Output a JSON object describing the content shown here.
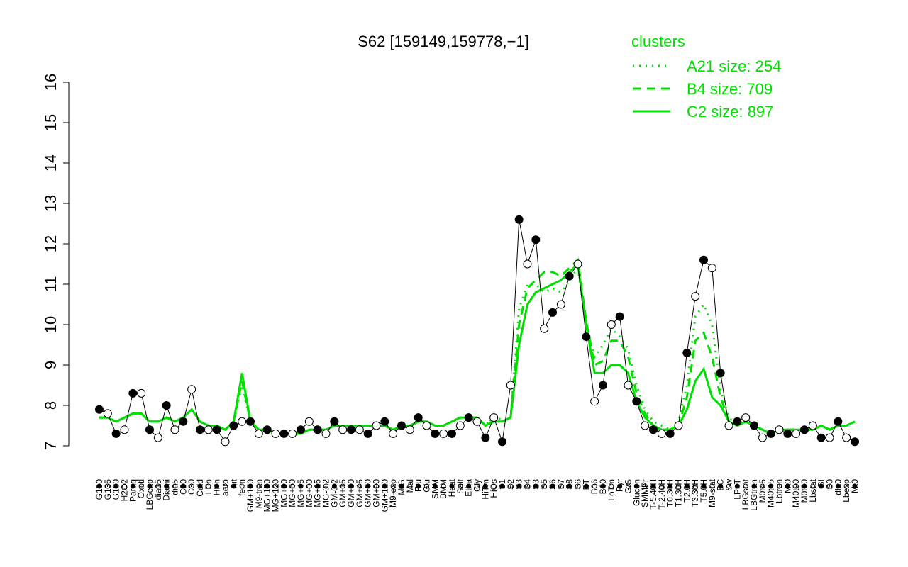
{
  "chart_data": {
    "type": "line",
    "title": "S62 [159149,159778,−1]",
    "legend_title": "clusters",
    "legend_position": "top-right",
    "ylim": [
      7,
      16
    ],
    "yticks": [
      7,
      8,
      9,
      10,
      11,
      12,
      13,
      14,
      15,
      16
    ],
    "categories": [
      "G150",
      "G135",
      "G180",
      "H2O2",
      "Paraq",
      "Oxctl",
      "LBGexp",
      "dia15",
      "Diami",
      "dia5",
      "C90",
      "C30",
      "Cold",
      "LPh",
      "HPh",
      "aero",
      "nit",
      "ferm",
      "GM+150",
      "M9-tran",
      "MG+150",
      "MG+120",
      "MG+90",
      "MG+60",
      "MG+45",
      "MG+30",
      "MG+15",
      "MG-0.2",
      "GM-0.2",
      "GM+15",
      "GM+30",
      "GM+45",
      "GM+60",
      "GM+90",
      "GM+120",
      "M9-exp",
      "M/G",
      "Mal",
      "Fru",
      "Glu",
      "SMM",
      "BMM",
      "Heat",
      "Salt",
      "Etha",
      "Gly",
      "HiTm",
      "HiOs",
      "S1",
      "S2",
      "S3",
      "S4",
      "S3",
      "S5",
      "S6",
      "S7",
      "S8",
      "S6",
      "BT",
      "B36",
      "B60",
      "LoTm",
      "Pyr",
      "G/S",
      "Glucon",
      "SMMPr",
      "T-5.40H",
      "T-2.40H",
      "T0.30H",
      "T1.30H",
      "T2.0H",
      "T3.30H",
      "T5.0H",
      "M9-stat",
      "BC",
      "Sw",
      "LPhT",
      "LBGstat",
      "LBGtran",
      "M0t45",
      "M40t45",
      "Lbtran",
      "Mt0",
      "M40t90",
      "M0t90",
      "Lbstat",
      "BI",
      "S0",
      "dia0",
      "Lbexp",
      "Mt0"
    ],
    "values": [
      7.9,
      7.8,
      7.3,
      7.4,
      8.3,
      8.3,
      7.4,
      7.2,
      8.0,
      7.4,
      7.6,
      8.4,
      7.4,
      7.4,
      7.4,
      7.1,
      7.5,
      7.6,
      7.6,
      7.3,
      7.4,
      7.3,
      7.3,
      7.3,
      7.4,
      7.6,
      7.4,
      7.3,
      7.6,
      7.4,
      7.4,
      7.4,
      7.3,
      7.5,
      7.6,
      7.3,
      7.5,
      7.4,
      7.7,
      7.5,
      7.3,
      7.3,
      7.3,
      7.5,
      7.7,
      7.6,
      7.2,
      7.7,
      7.1,
      8.5,
      12.6,
      11.5,
      12.1,
      9.9,
      10.3,
      10.5,
      11.2,
      11.5,
      9.7,
      8.1,
      8.5,
      10.0,
      10.2,
      8.5,
      8.1,
      7.5,
      7.4,
      7.3,
      7.3,
      7.5,
      9.3,
      10.7,
      11.6,
      11.4,
      8.8,
      7.5,
      7.6,
      7.7,
      7.5,
      7.2,
      7.3,
      7.4,
      7.3,
      7.3,
      7.4,
      7.5,
      7.2,
      7.2,
      7.6,
      7.2,
      7.1
    ],
    "color": "#000000",
    "series": [
      {
        "name": "A21 size: 254",
        "color": "#00e000",
        "dash": "dotted",
        "values": [
          7.7,
          7.7,
          7.6,
          7.7,
          7.8,
          7.8,
          7.6,
          7.6,
          7.7,
          7.6,
          7.7,
          7.9,
          7.6,
          7.5,
          7.5,
          7.4,
          7.6,
          8.5,
          7.6,
          7.4,
          7.4,
          7.3,
          7.3,
          7.3,
          7.3,
          7.4,
          7.4,
          7.4,
          7.5,
          7.5,
          7.5,
          7.5,
          7.5,
          7.5,
          7.5,
          7.4,
          7.5,
          7.5,
          7.6,
          7.6,
          7.5,
          7.5,
          7.6,
          7.7,
          7.7,
          7.7,
          7.5,
          7.8,
          7.6,
          7.7,
          10.4,
          11.0,
          11.0,
          10.8,
          10.9,
          10.8,
          11.1,
          11.4,
          10.0,
          9.2,
          9.5,
          9.9,
          9.7,
          9.4,
          8.5,
          7.9,
          7.6,
          7.5,
          7.4,
          7.6,
          8.5,
          10.2,
          10.5,
          10.0,
          8.4,
          7.7,
          7.5,
          7.6,
          7.5,
          7.4,
          7.3,
          7.4,
          7.4,
          7.4,
          7.4,
          7.4,
          7.5,
          7.4,
          7.5,
          7.5,
          7.6
        ]
      },
      {
        "name": "B4 size: 709",
        "color": "#00e000",
        "dash": "dashed",
        "values": [
          7.7,
          7.7,
          7.6,
          7.7,
          7.8,
          7.8,
          7.6,
          7.6,
          7.7,
          7.6,
          7.7,
          7.9,
          7.6,
          7.5,
          7.5,
          7.4,
          7.6,
          8.6,
          7.6,
          7.4,
          7.4,
          7.3,
          7.3,
          7.3,
          7.3,
          7.4,
          7.4,
          7.4,
          7.5,
          7.5,
          7.5,
          7.5,
          7.5,
          7.5,
          7.5,
          7.4,
          7.5,
          7.5,
          7.6,
          7.6,
          7.5,
          7.5,
          7.6,
          7.7,
          7.7,
          7.7,
          7.5,
          7.7,
          7.6,
          7.7,
          10.0,
          10.9,
          11.1,
          11.3,
          11.3,
          11.2,
          11.4,
          11.6,
          10.1,
          9.0,
          9.1,
          9.6,
          9.6,
          9.2,
          8.3,
          7.8,
          7.5,
          7.4,
          7.4,
          7.5,
          8.2,
          9.6,
          9.8,
          9.2,
          8.2,
          7.6,
          7.5,
          7.6,
          7.5,
          7.4,
          7.3,
          7.4,
          7.4,
          7.4,
          7.4,
          7.4,
          7.5,
          7.4,
          7.5,
          7.5,
          7.6
        ]
      },
      {
        "name": "C2 size: 897",
        "color": "#00e000",
        "dash": "solid",
        "values": [
          7.7,
          7.7,
          7.6,
          7.7,
          7.8,
          7.8,
          7.6,
          7.6,
          7.7,
          7.6,
          7.7,
          7.9,
          7.6,
          7.5,
          7.5,
          7.4,
          7.6,
          8.8,
          7.6,
          7.4,
          7.4,
          7.3,
          7.3,
          7.3,
          7.3,
          7.4,
          7.4,
          7.4,
          7.5,
          7.5,
          7.5,
          7.5,
          7.5,
          7.5,
          7.5,
          7.4,
          7.5,
          7.5,
          7.6,
          7.6,
          7.5,
          7.5,
          7.6,
          7.7,
          7.7,
          7.7,
          7.5,
          7.6,
          7.6,
          7.7,
          9.5,
          10.5,
          10.8,
          10.9,
          11.0,
          11.1,
          11.3,
          11.5,
          10.0,
          8.8,
          8.8,
          9.0,
          9.0,
          8.8,
          8.1,
          7.7,
          7.5,
          7.4,
          7.4,
          7.5,
          7.9,
          8.6,
          8.9,
          8.2,
          8.0,
          7.6,
          7.5,
          7.6,
          7.5,
          7.4,
          7.3,
          7.4,
          7.4,
          7.4,
          7.4,
          7.4,
          7.5,
          7.4,
          7.5,
          7.5,
          7.6
        ]
      }
    ]
  }
}
